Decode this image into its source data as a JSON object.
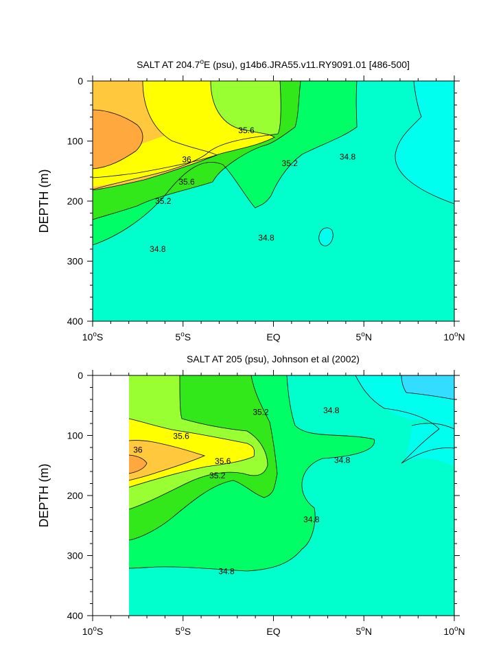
{
  "chart_data": [
    {
      "type": "contour",
      "title": "SALT AT 204.7°E (psu), g14b6.JRA55.v11.RY9091.01 [486-500]",
      "title_parts": {
        "prefix": "SALT AT 204.7",
        "degree": "o",
        "suffix": "E (psu), g14b6.JRA55.v11.RY9091.01 [486-500]"
      },
      "xlabel": "",
      "ylabel": "DEPTH (m)",
      "xlim": [
        -10,
        10
      ],
      "ylim": [
        400,
        0
      ],
      "x_ticks": [
        {
          "value": -10,
          "num": "10",
          "deg": "o",
          "hemi": "S",
          "text": "10°S"
        },
        {
          "value": -5,
          "num": "5",
          "deg": "o",
          "hemi": "S",
          "text": "5°S"
        },
        {
          "value": 0,
          "num": "EQ",
          "deg": "",
          "hemi": "",
          "text": "EQ"
        },
        {
          "value": 5,
          "num": "5",
          "deg": "o",
          "hemi": "N",
          "text": "5°N"
        },
        {
          "value": 10,
          "num": "10",
          "deg": "o",
          "hemi": "N",
          "text": "10°N"
        }
      ],
      "y_ticks": [
        0,
        100,
        200,
        300,
        400
      ],
      "data_x_range": [
        -10,
        10
      ],
      "contour_levels": [
        34.8,
        35.2,
        35.6,
        36.0
      ],
      "contour_labels": [
        {
          "text": "35.6",
          "x": -1.5,
          "depth": 82
        },
        {
          "text": "36",
          "x": -4.8,
          "depth": 131
        },
        {
          "text": "35.6",
          "x": -4.8,
          "depth": 168
        },
        {
          "text": "35.2",
          "x": -6.1,
          "depth": 200
        },
        {
          "text": "35.2",
          "x": 0.9,
          "depth": 137
        },
        {
          "text": "34.8",
          "x": 4.1,
          "depth": 126
        },
        {
          "text": "34.8",
          "x": -0.4,
          "depth": 261
        },
        {
          "text": "34.8",
          "x": -6.4,
          "depth": 280
        }
      ]
    },
    {
      "type": "contour",
      "title": "SALT AT 205 (psu), Johnson et al (2002)",
      "title_parts": {
        "prefix": "SALT AT 205 (psu), Johnson et al (2002)",
        "degree": "",
        "suffix": ""
      },
      "xlabel": "",
      "ylabel": "DEPTH (m)",
      "xlim": [
        -10,
        10
      ],
      "ylim": [
        400,
        0
      ],
      "x_ticks": [
        {
          "value": -10,
          "num": "10",
          "deg": "o",
          "hemi": "S",
          "text": "10°S"
        },
        {
          "value": -5,
          "num": "5",
          "deg": "o",
          "hemi": "S",
          "text": "5°S"
        },
        {
          "value": 0,
          "num": "EQ",
          "deg": "",
          "hemi": "",
          "text": "EQ"
        },
        {
          "value": 5,
          "num": "5",
          "deg": "o",
          "hemi": "N",
          "text": "5°N"
        },
        {
          "value": 10,
          "num": "10",
          "deg": "o",
          "hemi": "N",
          "text": "10°N"
        }
      ],
      "y_ticks": [
        0,
        100,
        200,
        300,
        400
      ],
      "data_x_range": [
        -8,
        10
      ],
      "contour_levels": [
        34.8,
        35.2,
        35.6,
        36.0
      ],
      "contour_labels": [
        {
          "text": "35.2",
          "x": -0.7,
          "depth": 61
        },
        {
          "text": "34.8",
          "x": 3.2,
          "depth": 58
        },
        {
          "text": "35.6",
          "x": -5.1,
          "depth": 101
        },
        {
          "text": "36",
          "x": -7.5,
          "depth": 124
        },
        {
          "text": "35.6",
          "x": -2.8,
          "depth": 143
        },
        {
          "text": "34.8",
          "x": 3.8,
          "depth": 141
        },
        {
          "text": "35.2",
          "x": -3.1,
          "depth": 167
        },
        {
          "text": "34.8",
          "x": 2.1,
          "depth": 240
        },
        {
          "text": "34.8",
          "x": -2.6,
          "depth": 326
        }
      ]
    }
  ],
  "colors": {
    "salt_36_plus": "#ffa83d",
    "salt_35_8": "#ffc83d",
    "salt_35_6": "#ffff00",
    "salt_35_4": "#99ff33",
    "salt_35_2": "#33e81a",
    "salt_35_0": "#00ff66",
    "salt_34_8": "#00ffcc",
    "salt_below": "#00ffee",
    "salt_lowest": "#33ddff",
    "contour_line": "#000000",
    "background": "#ffffff"
  }
}
